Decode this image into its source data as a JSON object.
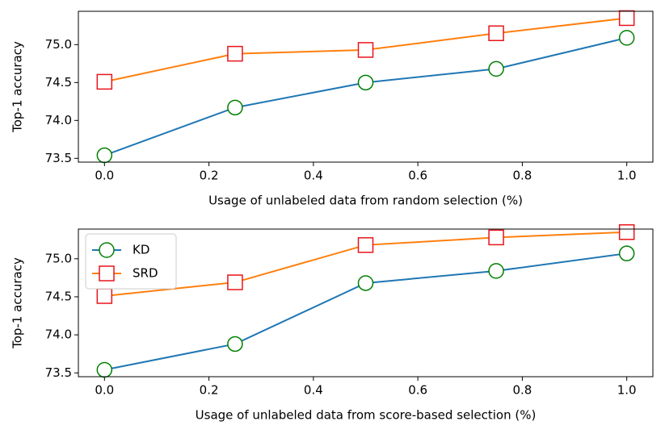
{
  "chart_data": [
    {
      "type": "line",
      "x_label": "Usage of unlabeled data from random selection (%)",
      "y_label": "Top-1 accuracy",
      "x": [
        0,
        0.25,
        0.5,
        0.75,
        1.0
      ],
      "series": [
        {
          "name": "KD",
          "color": "#1f77b4",
          "marker": "circle",
          "marker_color": "#008000",
          "values": [
            73.54,
            74.17,
            74.5,
            74.68,
            75.09
          ]
        },
        {
          "name": "SRD",
          "color": "#ff7f0e",
          "marker": "square",
          "marker_color": "#e8141c",
          "values": [
            74.51,
            74.88,
            74.93,
            75.15,
            75.35
          ]
        }
      ],
      "xlim": [
        -0.05,
        1.05
      ],
      "ylim": [
        73.45,
        75.44
      ],
      "xticks": [
        {
          "value": 0,
          "label": "0.0"
        },
        0.2,
        0.4,
        0.6,
        0.8,
        {
          "value": 1,
          "label": "1.0"
        }
      ],
      "yticks": [
        73.5,
        {
          "value": 74,
          "label": "74.0"
        },
        74.5,
        {
          "value": 75,
          "label": "75.0"
        }
      ]
    },
    {
      "type": "line",
      "x_label": "Usage of unlabeled data from score-based selection (%)",
      "y_label": "Top-1 accuracy",
      "x": [
        0,
        0.25,
        0.5,
        0.75,
        1.0
      ],
      "series": [
        {
          "name": "KD",
          "color": "#1f77b4",
          "marker": "circle",
          "marker_color": "#008000",
          "values": [
            73.54,
            73.88,
            74.68,
            74.84,
            75.07
          ]
        },
        {
          "name": "SRD",
          "color": "#ff7f0e",
          "marker": "square",
          "marker_color": "#e8141c",
          "values": [
            74.51,
            74.69,
            75.18,
            75.28,
            75.35
          ]
        }
      ],
      "xlim": [
        -0.05,
        1.05
      ],
      "ylim": [
        73.45,
        75.39
      ],
      "xticks": [
        {
          "value": 0,
          "label": "0.0"
        },
        0.2,
        0.4,
        0.6,
        0.8,
        {
          "value": 1,
          "label": "1.0"
        }
      ],
      "yticks": [
        73.5,
        {
          "value": 74,
          "label": "74.0"
        },
        74.5,
        {
          "value": 75,
          "label": "75.0"
        }
      ],
      "legend": "upper left"
    }
  ]
}
